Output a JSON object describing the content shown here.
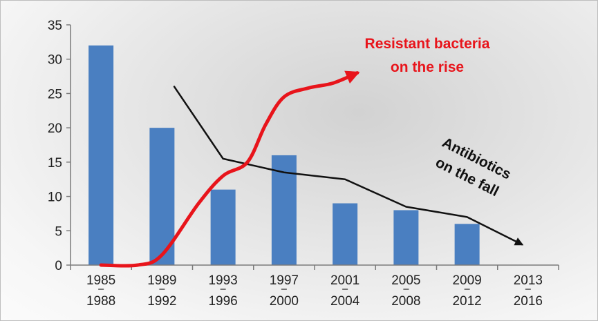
{
  "chart_data": {
    "type": "bar",
    "title": "",
    "xlabel": "",
    "ylabel": "",
    "ylim": [
      0,
      35
    ],
    "y_ticks": [
      0,
      5,
      10,
      15,
      20,
      25,
      30,
      35
    ],
    "grid": false,
    "categories": [
      {
        "top": "1985",
        "bottom": "1988"
      },
      {
        "top": "1989",
        "bottom": "1992"
      },
      {
        "top": "1993",
        "bottom": "1996"
      },
      {
        "top": "1997",
        "bottom": "2000"
      },
      {
        "top": "2001",
        "bottom": "2004"
      },
      {
        "top": "2005",
        "bottom": "2008"
      },
      {
        "top": "2009",
        "bottom": "2012"
      },
      {
        "top": "2013",
        "bottom": "2016"
      }
    ],
    "bars": {
      "color": "#4a7fc1",
      "values": [
        32,
        20,
        11,
        16,
        9,
        8,
        6,
        0
      ]
    },
    "lines": [
      {
        "color": "#111111",
        "arrow": true,
        "points": [
          [
            1.2,
            26
          ],
          [
            2.0,
            15.5
          ],
          [
            3.0,
            13.5
          ],
          [
            4.0,
            12.5
          ],
          [
            5.0,
            8.5
          ],
          [
            6.0,
            7.0
          ],
          [
            6.9,
            3.0
          ]
        ]
      },
      {
        "color": "#e8141b",
        "arrow": true,
        "points": [
          [
            0.0,
            0
          ],
          [
            0.6,
            0
          ],
          [
            1.0,
            1.5
          ],
          [
            1.6,
            9.0
          ],
          [
            2.0,
            13.0
          ],
          [
            2.4,
            15.0
          ],
          [
            2.7,
            20.5
          ],
          [
            3.0,
            24.5
          ],
          [
            3.4,
            25.8
          ],
          [
            3.8,
            26.5
          ],
          [
            4.2,
            28.0
          ]
        ]
      }
    ],
    "annotations": {
      "resistant": {
        "line1": "Resistant bacteria",
        "line2": "on the rise"
      },
      "antibiotics": {
        "line1": "Antibiotics",
        "line2": "on the fall"
      }
    }
  }
}
